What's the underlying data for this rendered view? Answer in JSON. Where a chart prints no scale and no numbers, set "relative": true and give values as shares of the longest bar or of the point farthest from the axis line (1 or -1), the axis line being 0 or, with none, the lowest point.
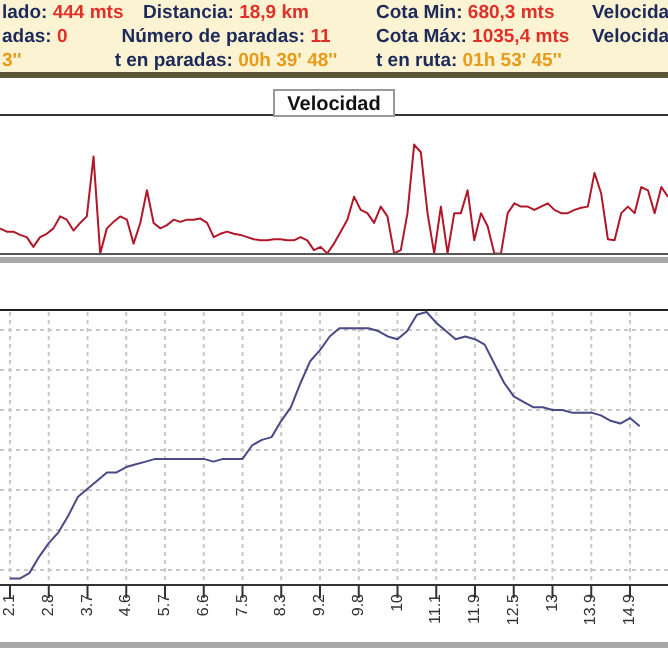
{
  "chart_data": [
    {
      "type": "other",
      "annotations": [
        "lado: 444 mts",
        "Distancia: 18,9 km",
        "Cota Min: 680,3 mts",
        "Velocida",
        "adas: 0",
        "Número de paradas: 11",
        "Cota Máx: 1035,4 mts",
        "Velocida",
        "3''",
        "t en paradas: 00h 39' 48''",
        "t en ruta: 01h 53' 45''"
      ]
    },
    {
      "type": "line",
      "title": "Velocidad",
      "relative": true,
      "categories": [
        null,
        null,
        null,
        null,
        null,
        null,
        null,
        null,
        null,
        null,
        null,
        null,
        null,
        null,
        null,
        null,
        null,
        null,
        null,
        null,
        null,
        null,
        null,
        null,
        null,
        null,
        null,
        null,
        null,
        null,
        null,
        null,
        null,
        null,
        null,
        null,
        null,
        null,
        null,
        null,
        null,
        null,
        null,
        null,
        null,
        null,
        null,
        null,
        null,
        null,
        null,
        null,
        null,
        null,
        null,
        null,
        null,
        null,
        null,
        null,
        null,
        null,
        null,
        null,
        null,
        null,
        null,
        null,
        null,
        null,
        null,
        null,
        null,
        null,
        null,
        null,
        null,
        null,
        null,
        null,
        null,
        null,
        null,
        null,
        null,
        null,
        null,
        null,
        null,
        null,
        null,
        null,
        null,
        null,
        null,
        null,
        null,
        null,
        null,
        null,
        null
      ],
      "series": [
        {
          "color": "#b0182a",
          "values": [
            0.23,
            0.2,
            0.2,
            0.17,
            0.15,
            0.06,
            0.15,
            0.18,
            0.23,
            0.34,
            0.31,
            0.21,
            0.28,
            0.34,
            0.89,
            0,
            0.23,
            0.29,
            0.34,
            0.31,
            0.09,
            0.28,
            0.58,
            0.28,
            0.23,
            0.26,
            0.31,
            0.29,
            0.31,
            0.31,
            0.32,
            0.28,
            0.15,
            0.18,
            0.2,
            0.18,
            0.17,
            0.15,
            0.13,
            0.12,
            0.12,
            0.13,
            0.13,
            0.12,
            0.12,
            0.15,
            0.12,
            0.03,
            0.06,
            0,
            0.09,
            0.2,
            0.31,
            0.52,
            0.4,
            0.37,
            0.28,
            0.43,
            0.34,
            0,
            0.03,
            0.37,
            1,
            0.93,
            0.37,
            0,
            0.43,
            0,
            0.37,
            0.37,
            0.58,
            0.12,
            0.37,
            0.25,
            0,
            0,
            0.37,
            0.46,
            0.43,
            0.43,
            0.4,
            0.43,
            0.46,
            0.4,
            0.37,
            0.37,
            0.4,
            0.42,
            0.43,
            0.74,
            0.55,
            0.13,
            0.12,
            0.37,
            0.43,
            0.37,
            0.61,
            0.58,
            0.37,
            0.61,
            0.52
          ]
        }
      ]
    },
    {
      "type": "line",
      "relative": true,
      "grid": true,
      "categories": [
        "2.1",
        null,
        null,
        null,
        "2.8",
        null,
        null,
        null,
        "3.7",
        null,
        null,
        null,
        "4.6",
        null,
        null,
        null,
        "5.7",
        null,
        null,
        null,
        "6.6",
        null,
        null,
        null,
        "7.5",
        null,
        null,
        null,
        "8.3",
        null,
        null,
        null,
        "9.2",
        null,
        null,
        null,
        "9.8",
        null,
        null,
        null,
        "10",
        null,
        null,
        null,
        "11.1",
        null,
        null,
        null,
        "11.9",
        null,
        null,
        null,
        "12.5",
        null,
        null,
        null,
        "13",
        null,
        null,
        null,
        "13.9",
        null,
        null,
        null,
        "14.9",
        null
      ],
      "series": [
        {
          "color": "#4a4a86",
          "values": [
            0.02,
            0.02,
            0.04,
            0.1,
            0.15,
            0.19,
            0.25,
            0.32,
            0.35,
            0.38,
            0.41,
            0.41,
            0.43,
            0.44,
            0.45,
            0.46,
            0.46,
            0.46,
            0.46,
            0.46,
            0.46,
            0.45,
            0.46,
            0.46,
            0.46,
            0.51,
            0.53,
            0.54,
            0.6,
            0.65,
            0.74,
            0.82,
            0.86,
            0.91,
            0.94,
            0.94,
            0.94,
            0.94,
            0.93,
            0.91,
            0.9,
            0.93,
            0.99,
            1,
            0.96,
            0.93,
            0.9,
            0.91,
            0.9,
            0.88,
            0.81,
            0.74,
            0.69,
            0.67,
            0.65,
            0.65,
            0.64,
            0.64,
            0.63,
            0.63,
            0.63,
            0.62,
            0.6,
            0.59,
            0.61,
            0.58
          ]
        }
      ]
    }
  ]
}
